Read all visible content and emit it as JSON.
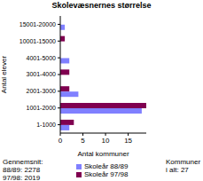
{
  "chart_data": {
    "type": "bar",
    "orientation": "horizontal",
    "title": "Skolevæsnernes størrelse",
    "x_label": "Antal kommuner",
    "y_label": "Antal elever",
    "categories": [
      "1-1000",
      "1001-2000",
      "2001-3000",
      "3001-4000",
      "4001-5000",
      "10001-15000",
      "15001-20000"
    ],
    "series": [
      {
        "name": "Skoleår 88/89",
        "color": "#8080ff",
        "values": [
          2,
          18,
          4,
          0,
          2,
          0,
          1
        ]
      },
      {
        "name": "Skoleår 97/98",
        "color": "#800050",
        "values": [
          3,
          19,
          2,
          2,
          0,
          1,
          0
        ]
      }
    ],
    "xlim": [
      0,
      19
    ],
    "xticks": [
      0,
      5,
      10,
      15
    ],
    "grid": false,
    "annotations": [
      "Gennemsnit:",
      "88/89: 2278",
      "97/98: 2019",
      "Kommuner i alt: 27"
    ]
  }
}
